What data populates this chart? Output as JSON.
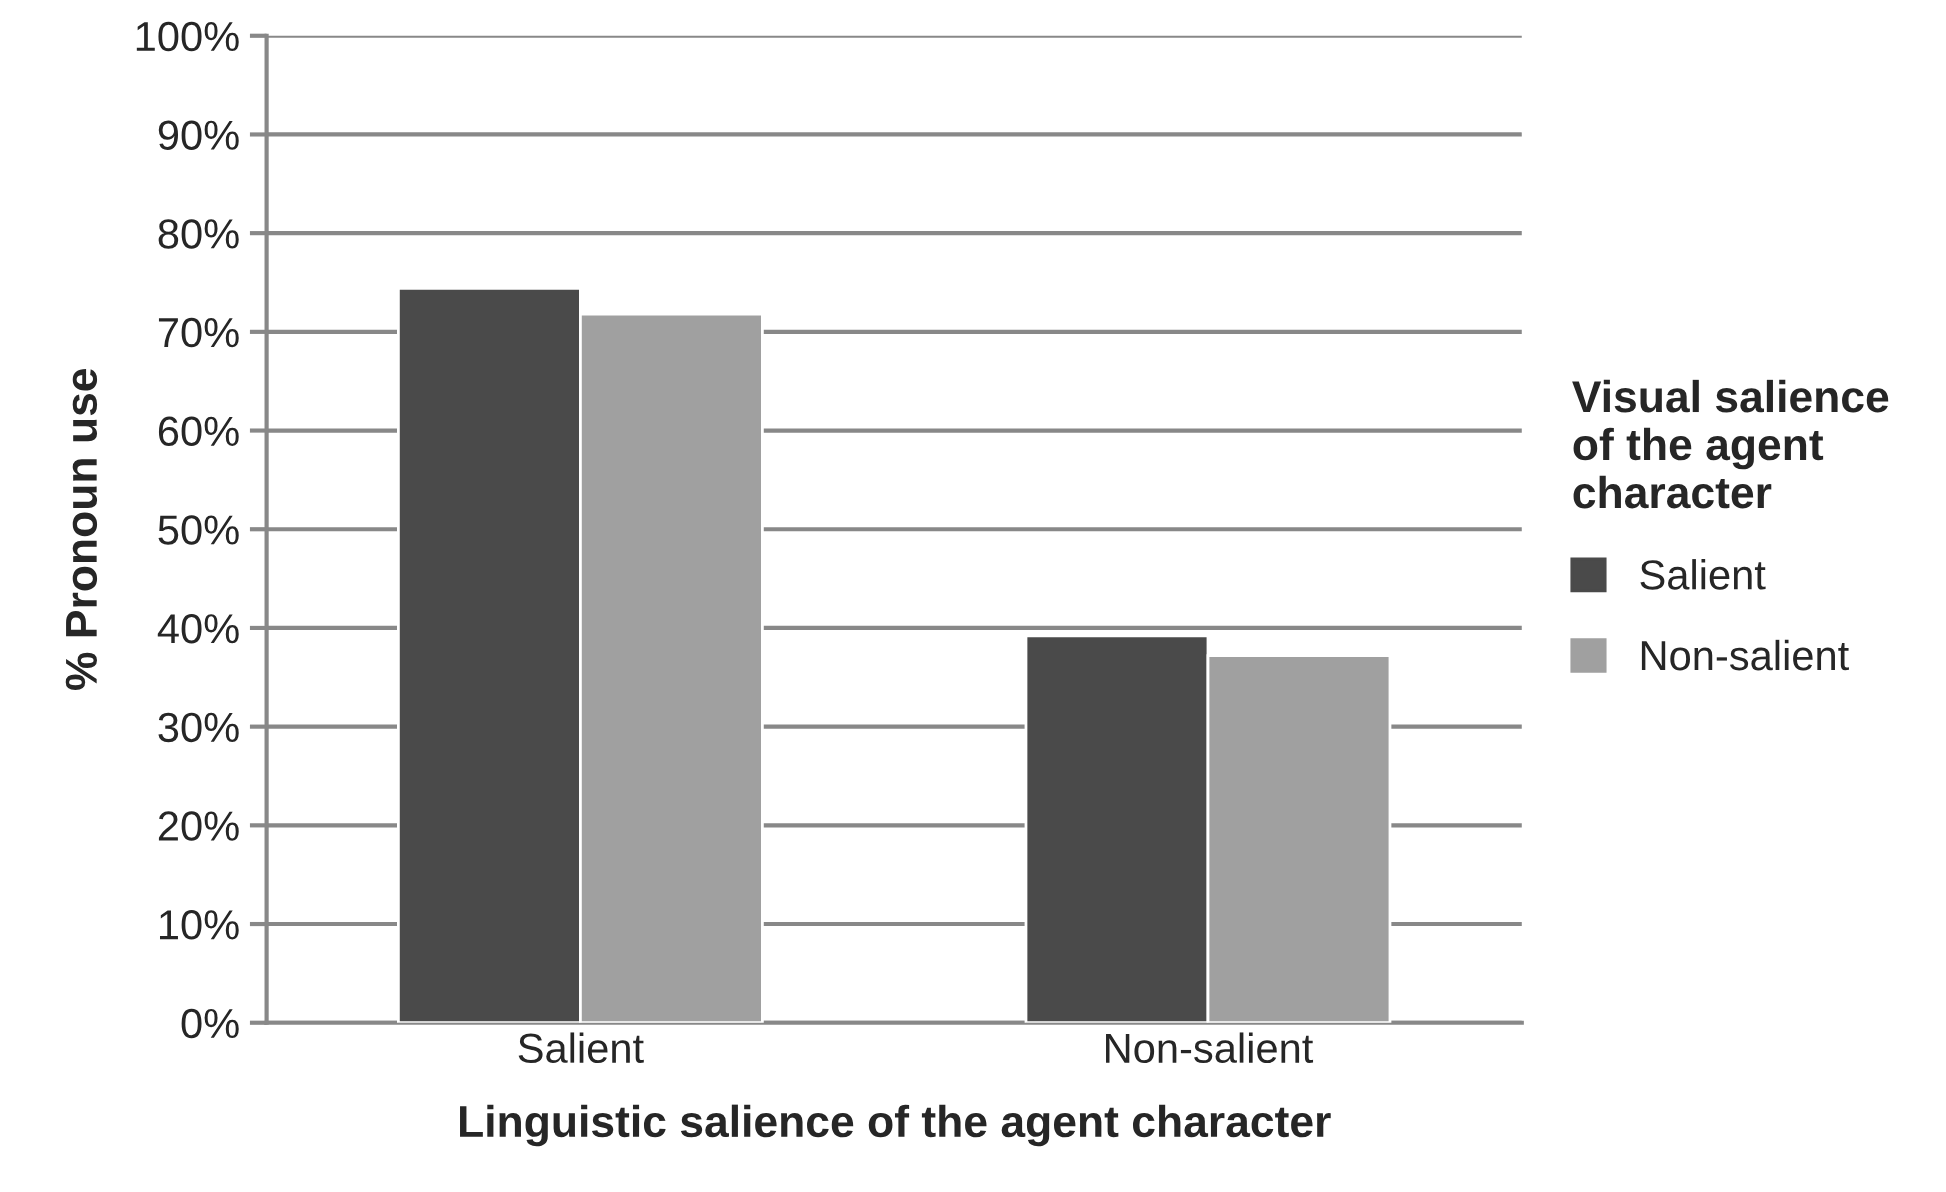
{
  "chart_data": {
    "type": "bar",
    "xlabel": "Linguistic salience of the agent character",
    "ylabel": "% Pronoun use",
    "legend_title": "Visual salience\nof the agent\ncharacter",
    "categories": [
      "Salient",
      "Non-salient"
    ],
    "series": [
      {
        "name": "Salient",
        "color": "#4a4a4a",
        "values": [
          74.4,
          39.2
        ]
      },
      {
        "name": "Non-salient",
        "color": "#a0a0a0",
        "values": [
          71.8,
          37.2
        ]
      }
    ],
    "ylim": [
      0,
      100
    ],
    "yticks": [
      {
        "value": 0,
        "label": "0%"
      },
      {
        "value": 10,
        "label": "10%"
      },
      {
        "value": 20,
        "label": "20%"
      },
      {
        "value": 30,
        "label": "30%"
      },
      {
        "value": 40,
        "label": "40%"
      },
      {
        "value": 50,
        "label": "50%"
      },
      {
        "value": 60,
        "label": "60%"
      },
      {
        "value": 70,
        "label": "70%"
      },
      {
        "value": 80,
        "label": "80%"
      },
      {
        "value": 90,
        "label": "90%"
      },
      {
        "value": 100,
        "label": "100%"
      }
    ],
    "grid": "y",
    "legend": "right"
  }
}
